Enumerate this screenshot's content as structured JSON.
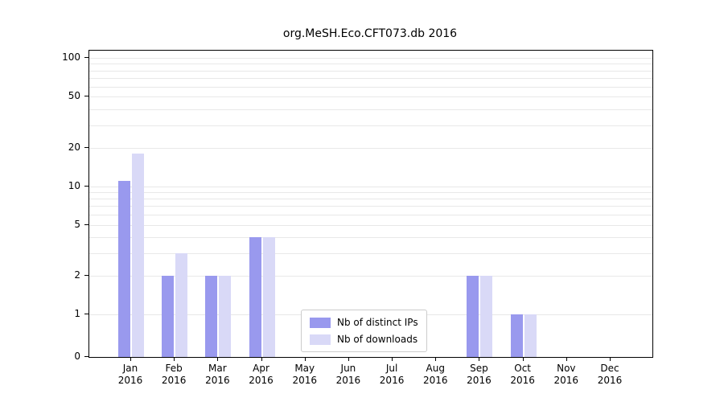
{
  "chart_data": {
    "type": "bar",
    "title": "org.MeSH.Eco.CFT073.db 2016",
    "categories": [
      "Jan",
      "Feb",
      "Mar",
      "Apr",
      "May",
      "Jun",
      "Jul",
      "Aug",
      "Sep",
      "Oct",
      "Nov",
      "Dec"
    ],
    "year_label": "2016",
    "series": [
      {
        "name": "Nb of distinct IPs",
        "color": "#9999ee",
        "values": [
          11,
          2,
          2,
          4,
          0,
          0,
          0,
          0,
          2,
          1,
          0,
          0
        ]
      },
      {
        "name": "Nb of downloads",
        "color": "#d9d9f7",
        "values": [
          18,
          3,
          2,
          4,
          0,
          0,
          0,
          0,
          2,
          1,
          0,
          0
        ]
      }
    ],
    "y_ticks": [
      100,
      50,
      20,
      10,
      5,
      2,
      1,
      0
    ],
    "y_minor_gridlines": [
      3,
      4,
      6,
      7,
      8,
      9,
      30,
      40,
      60,
      70,
      80,
      90
    ],
    "y_scale": "symlog",
    "ylim": [
      0,
      115
    ],
    "legend_position": "lower center",
    "grid": true,
    "grid_color": "#e8e8e8",
    "xlabel": "",
    "ylabel": ""
  }
}
